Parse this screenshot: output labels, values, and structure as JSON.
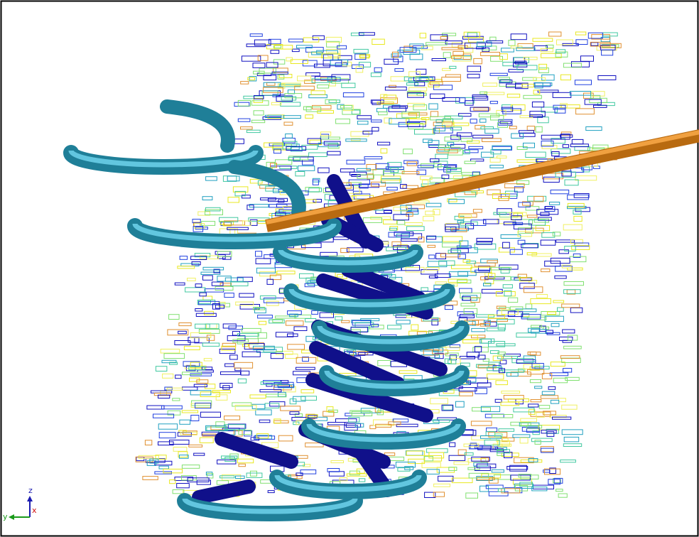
{
  "axes_triad": {
    "z": "z",
    "y": "y",
    "x": "x"
  }
}
